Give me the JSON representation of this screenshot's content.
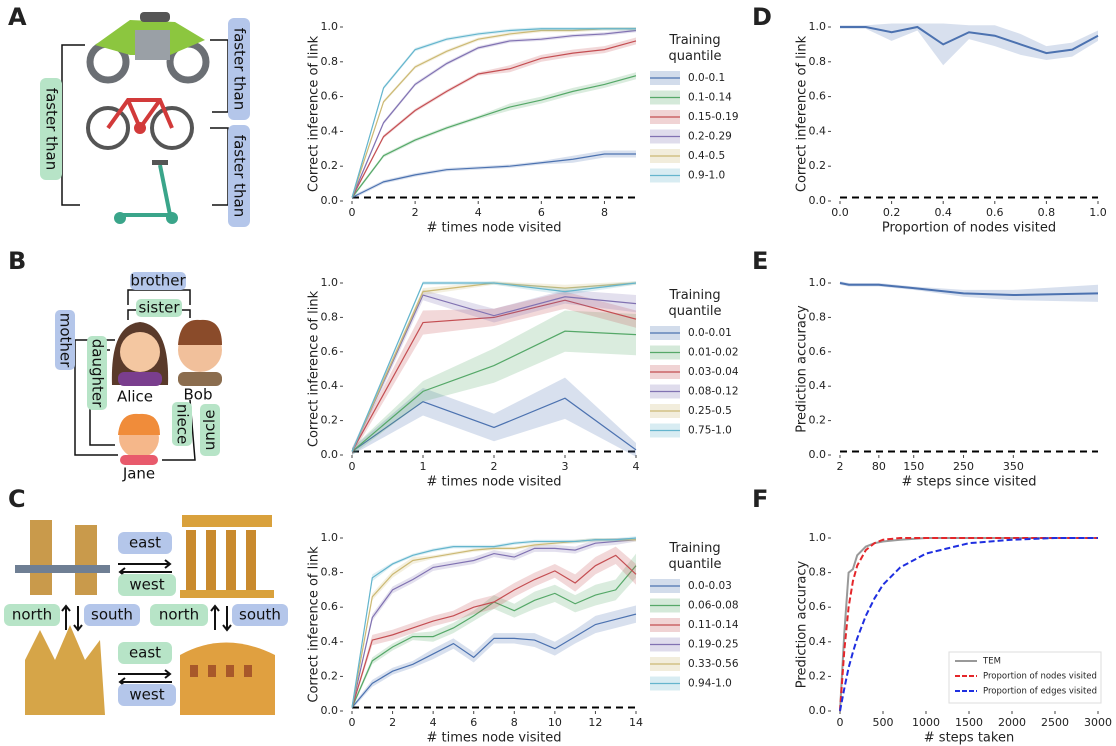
{
  "panel_labels": [
    "A",
    "B",
    "C",
    "D",
    "E",
    "F"
  ],
  "diagrams": [
    {
      "labels": [
        "faster than",
        "faster than",
        "faster than"
      ]
    },
    {
      "labels": [
        "brother",
        "sister",
        "mother",
        "daughter",
        "Alice",
        "Bob",
        "niece",
        "uncle",
        "Jane"
      ]
    },
    {
      "labels": [
        "east",
        "west",
        "north",
        "south",
        "north",
        "south",
        "east",
        "west"
      ]
    }
  ],
  "chart_data": [
    {
      "type": "line",
      "xlabel": "# times node visited",
      "ylabel": "Correct inference of link",
      "legend_title": "Training quantile",
      "x": [
        0,
        1,
        2,
        3,
        4,
        5,
        6,
        7,
        8,
        9
      ],
      "xlim": [
        0,
        9
      ],
      "xticks": [
        0,
        2,
        4,
        6,
        8
      ],
      "ylim": [
        0,
        1
      ],
      "yticks": [
        {
          "value": 0,
          "label": "0.0"
        },
        0.2,
        0.4,
        0.6,
        0.8,
        {
          "value": 1,
          "label": "1.0"
        }
      ],
      "baseline": 0.02,
      "series": [
        {
          "name": "0.0-0.1",
          "color": "#4c72b0",
          "values": [
            0.02,
            0.11,
            0.15,
            0.18,
            0.19,
            0.2,
            0.22,
            0.24,
            0.27,
            0.27
          ],
          "error": [
            0.01,
            0.01,
            0.01,
            0.01,
            0.01,
            0.01,
            0.01,
            0.02,
            0.02,
            0.02
          ]
        },
        {
          "name": "0.1-0.14",
          "color": "#55a868",
          "values": [
            0.02,
            0.26,
            0.35,
            0.42,
            0.48,
            0.54,
            0.58,
            0.63,
            0.67,
            0.72
          ],
          "error": [
            0.01,
            0.01,
            0.01,
            0.01,
            0.01,
            0.02,
            0.02,
            0.02,
            0.02,
            0.02
          ]
        },
        {
          "name": "0.15-0.19",
          "color": "#c44e52",
          "values": [
            0.02,
            0.37,
            0.52,
            0.63,
            0.73,
            0.76,
            0.82,
            0.85,
            0.87,
            0.92
          ],
          "error": [
            0.01,
            0.01,
            0.01,
            0.01,
            0.01,
            0.02,
            0.02,
            0.02,
            0.02,
            0.02
          ]
        },
        {
          "name": "0.2-0.29",
          "color": "#8172b2",
          "values": [
            0.02,
            0.45,
            0.67,
            0.79,
            0.88,
            0.92,
            0.93,
            0.95,
            0.96,
            0.98
          ],
          "error": [
            0.01,
            0.01,
            0.01,
            0.01,
            0.01,
            0.01,
            0.01,
            0.01,
            0.01,
            0.01
          ]
        },
        {
          "name": "0.4-0.5",
          "color": "#ccb974",
          "values": [
            0.02,
            0.57,
            0.77,
            0.86,
            0.93,
            0.96,
            0.98,
            0.98,
            0.99,
            0.99
          ],
          "error": [
            0.01,
            0.01,
            0.01,
            0.01,
            0.01,
            0.01,
            0.01,
            0.01,
            0.01,
            0.01
          ]
        },
        {
          "name": "0.9-1.0",
          "color": "#64b5cd",
          "values": [
            0.02,
            0.65,
            0.87,
            0.93,
            0.96,
            0.98,
            0.99,
            0.99,
            0.99,
            0.99
          ],
          "error": [
            0.01,
            0.01,
            0.01,
            0.01,
            0.01,
            0.01,
            0.01,
            0.01,
            0.01,
            0.01
          ]
        }
      ]
    },
    {
      "type": "line",
      "xlabel": "# times node visited",
      "ylabel": "Correct inference of link",
      "legend_title": "Training quantile",
      "x": [
        0,
        1,
        2,
        3,
        4
      ],
      "xlim": [
        0,
        4
      ],
      "xticks": [
        0,
        1,
        2,
        3,
        4
      ],
      "ylim": [
        0,
        1
      ],
      "yticks": [
        {
          "value": 0,
          "label": "0.0"
        },
        0.2,
        0.4,
        0.6,
        0.8,
        {
          "value": 1,
          "label": "1.0"
        }
      ],
      "baseline": 0.02,
      "series": [
        {
          "name": "0.0-0.01",
          "color": "#4c72b0",
          "values": [
            0.02,
            0.31,
            0.16,
            0.33,
            0.03
          ],
          "error": [
            0.02,
            0.08,
            0.08,
            0.12,
            0.04
          ]
        },
        {
          "name": "0.01-0.02",
          "color": "#55a868",
          "values": [
            0.02,
            0.37,
            0.52,
            0.72,
            0.7
          ],
          "error": [
            0.02,
            0.06,
            0.1,
            0.12,
            0.12
          ]
        },
        {
          "name": "0.03-0.04",
          "color": "#c44e52",
          "values": [
            0.02,
            0.77,
            0.8,
            0.9,
            0.79
          ],
          "error": [
            0.02,
            0.07,
            0.05,
            0.05,
            0.05
          ]
        },
        {
          "name": "0.08-0.12",
          "color": "#8172b2",
          "values": [
            0.02,
            0.93,
            0.81,
            0.92,
            0.88
          ],
          "error": [
            0.02,
            0.03,
            0.04,
            0.04,
            0.05
          ]
        },
        {
          "name": "0.25-0.5",
          "color": "#ccb974",
          "values": [
            0.02,
            0.95,
            1.0,
            0.97,
            1.0
          ],
          "error": [
            0.01,
            0.02,
            0.01,
            0.02,
            0.01
          ]
        },
        {
          "name": "0.75-1.0",
          "color": "#64b5cd",
          "values": [
            0.02,
            1.0,
            1.0,
            0.95,
            1.0
          ],
          "error": [
            0.01,
            0.01,
            0.01,
            0.02,
            0.01
          ]
        }
      ]
    },
    {
      "type": "line",
      "xlabel": "# times node visited",
      "ylabel": "Correct inference of link",
      "legend_title": "Training quantile",
      "x": [
        0,
        1,
        2,
        3,
        4,
        5,
        6,
        7,
        8,
        9,
        10,
        11,
        12,
        13,
        14
      ],
      "xlim": [
        0,
        14
      ],
      "xticks": [
        0,
        2,
        4,
        6,
        8,
        10,
        12,
        14
      ],
      "ylim": [
        0,
        1
      ],
      "yticks": [
        {
          "value": 0,
          "label": "0.0"
        },
        0.2,
        0.4,
        0.6,
        0.8,
        {
          "value": 1,
          "label": "1.0"
        }
      ],
      "baseline": 0.02,
      "series": [
        {
          "name": "0.0-0.03",
          "color": "#4c72b0",
          "values": [
            0.02,
            0.16,
            0.23,
            0.27,
            0.33,
            0.39,
            0.31,
            0.42,
            0.42,
            0.41,
            0.36,
            0.43,
            0.5,
            0.53,
            0.56
          ],
          "error": [
            0.01,
            0.02,
            0.02,
            0.02,
            0.03,
            0.03,
            0.03,
            0.03,
            0.03,
            0.04,
            0.04,
            0.04,
            0.05,
            0.05,
            0.05
          ]
        },
        {
          "name": "0.06-0.08",
          "color": "#55a868",
          "values": [
            0.02,
            0.29,
            0.37,
            0.43,
            0.43,
            0.48,
            0.55,
            0.63,
            0.58,
            0.64,
            0.68,
            0.62,
            0.67,
            0.7,
            0.84
          ],
          "error": [
            0.01,
            0.02,
            0.02,
            0.02,
            0.03,
            0.03,
            0.03,
            0.04,
            0.04,
            0.05,
            0.05,
            0.05,
            0.06,
            0.06,
            0.07
          ]
        },
        {
          "name": "0.11-0.14",
          "color": "#c44e52",
          "values": [
            0.02,
            0.41,
            0.44,
            0.48,
            0.52,
            0.55,
            0.6,
            0.63,
            0.7,
            0.76,
            0.81,
            0.74,
            0.84,
            0.9,
            0.79
          ],
          "error": [
            0.01,
            0.03,
            0.03,
            0.03,
            0.03,
            0.03,
            0.04,
            0.04,
            0.04,
            0.04,
            0.04,
            0.05,
            0.05,
            0.05,
            0.06
          ]
        },
        {
          "name": "0.19-0.25",
          "color": "#8172b2",
          "values": [
            0.02,
            0.54,
            0.7,
            0.76,
            0.83,
            0.85,
            0.87,
            0.91,
            0.89,
            0.94,
            0.94,
            0.93,
            0.97,
            0.98,
            0.99
          ],
          "error": [
            0.01,
            0.02,
            0.02,
            0.02,
            0.02,
            0.02,
            0.02,
            0.02,
            0.02,
            0.02,
            0.02,
            0.02,
            0.02,
            0.02,
            0.01
          ]
        },
        {
          "name": "0.33-0.56",
          "color": "#ccb974",
          "values": [
            0.02,
            0.66,
            0.79,
            0.87,
            0.89,
            0.91,
            0.93,
            0.94,
            0.94,
            0.96,
            0.97,
            0.98,
            0.99,
            0.99,
            0.99
          ],
          "error": [
            0.01,
            0.02,
            0.02,
            0.02,
            0.01,
            0.01,
            0.01,
            0.01,
            0.01,
            0.01,
            0.01,
            0.01,
            0.01,
            0.01,
            0.01
          ]
        },
        {
          "name": "0.94-1.0",
          "color": "#64b5cd",
          "values": [
            0.02,
            0.77,
            0.85,
            0.9,
            0.93,
            0.95,
            0.95,
            0.95,
            0.97,
            0.98,
            0.98,
            0.98,
            0.99,
            0.99,
            1.0
          ],
          "error": [
            0.01,
            0.02,
            0.01,
            0.01,
            0.01,
            0.01,
            0.01,
            0.01,
            0.01,
            0.01,
            0.01,
            0.01,
            0.01,
            0.01,
            0.01
          ]
        }
      ]
    },
    {
      "type": "line",
      "xlabel": "Proportion of nodes visited",
      "ylabel": "Correct inference of link",
      "x": [
        0,
        0.1,
        0.2,
        0.3,
        0.4,
        0.5,
        0.6,
        0.7,
        0.8,
        0.9,
        1.0
      ],
      "xlim": [
        0,
        1
      ],
      "xticks": [
        {
          "value": 0,
          "label": "0.0"
        },
        0.2,
        0.4,
        0.6,
        0.8,
        {
          "value": 1,
          "label": "1.0"
        }
      ],
      "ylim": [
        0,
        1
      ],
      "yticks": [
        {
          "value": 0,
          "label": "0.0"
        },
        0.2,
        0.4,
        0.6,
        0.8,
        {
          "value": 1,
          "label": "1.0"
        }
      ],
      "baseline": 0.02,
      "series": [
        {
          "color": "#4c72b0",
          "values": [
            1.0,
            1.0,
            0.97,
            1.0,
            0.9,
            0.97,
            0.95,
            0.9,
            0.85,
            0.87,
            0.95
          ],
          "error": [
            0.01,
            0.01,
            0.05,
            0.02,
            0.12,
            0.04,
            0.06,
            0.06,
            0.04,
            0.04,
            0.03
          ]
        }
      ]
    },
    {
      "type": "line",
      "xlabel": "# steps since visited",
      "ylabel": "Prediction accuracy",
      "x": [
        2,
        20,
        50,
        80,
        150,
        250,
        350,
        520
      ],
      "xlim": [
        2,
        520
      ],
      "xticks": [
        2,
        80,
        150,
        250,
        350
      ],
      "ylim": [
        0,
        1
      ],
      "yticks": [
        {
          "value": 0,
          "label": "0.0"
        },
        0.2,
        0.4,
        0.6,
        0.8,
        {
          "value": 1,
          "label": "1.0"
        }
      ],
      "baseline": 0.02,
      "series": [
        {
          "color": "#4c72b0",
          "values": [
            1.0,
            0.99,
            0.99,
            0.99,
            0.97,
            0.94,
            0.93,
            0.94
          ],
          "error": [
            0.01,
            0.01,
            0.01,
            0.01,
            0.01,
            0.02,
            0.03,
            0.05
          ]
        }
      ]
    },
    {
      "type": "line",
      "xlabel": "# steps taken",
      "ylabel": "Prediction accuracy",
      "legend": "lower right",
      "x": [
        0,
        50,
        100,
        150,
        200,
        300,
        400,
        500,
        700,
        1000,
        1500,
        2000,
        2500,
        3000
      ],
      "xlim": [
        0,
        3000
      ],
      "xticks": [
        0,
        500,
        1000,
        1500,
        2000,
        2500,
        3000
      ],
      "ylim": [
        0,
        1
      ],
      "yticks": [
        {
          "value": 0,
          "label": "0.0"
        },
        0.2,
        0.4,
        0.6,
        0.8,
        {
          "value": 1,
          "label": "1.0"
        }
      ],
      "series": [
        {
          "name": "TEM",
          "color": "#999999",
          "style": "solid",
          "values": [
            0.0,
            0.45,
            0.8,
            0.82,
            0.9,
            0.95,
            0.97,
            0.98,
            0.99,
            1.0,
            1.0,
            1.0,
            1.0,
            1.0
          ]
        },
        {
          "name": "Proportion of nodes visited",
          "color": "#e4262a",
          "style": "dashed",
          "values": [
            0.0,
            0.35,
            0.6,
            0.75,
            0.84,
            0.93,
            0.97,
            0.99,
            1.0,
            1.0,
            1.0,
            1.0,
            1.0,
            1.0
          ]
        },
        {
          "name": "Proportion of edges visited",
          "color": "#1f2fe0",
          "style": "dashed",
          "values": [
            0.0,
            0.13,
            0.25,
            0.34,
            0.42,
            0.55,
            0.65,
            0.73,
            0.83,
            0.91,
            0.97,
            0.99,
            1.0,
            1.0
          ]
        }
      ]
    }
  ]
}
